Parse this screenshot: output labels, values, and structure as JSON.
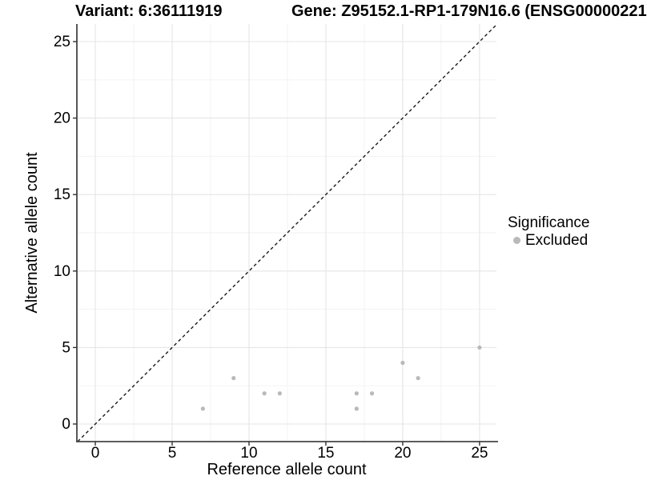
{
  "figure": {
    "variant_title": "Variant: 6:36111919",
    "gene_title": "Gene: Z95152.1-RP1-179N16.6 (ENSG00000221"
  },
  "chart_data": {
    "type": "scatter",
    "xlabel": "Reference allele count",
    "ylabel": "Alternative allele count",
    "xlim": [
      -1.2,
      26.1
    ],
    "ylim": [
      -1.15,
      26.15
    ],
    "xticks": [
      0,
      5,
      10,
      15,
      20,
      25
    ],
    "yticks": [
      0,
      5,
      10,
      15,
      20,
      25
    ],
    "xticks_minor": [
      2.5,
      7.5,
      12.5,
      17.5,
      22.5
    ],
    "yticks_minor": [
      2.5,
      7.5,
      12.5,
      17.5,
      22.5
    ],
    "grid": true,
    "identity_line": {
      "show": true,
      "style": "dashed",
      "meaning": "y = x"
    },
    "series": [
      {
        "name": "Excluded",
        "color": "#b9b9b9",
        "points": [
          {
            "x": 7,
            "y": 1
          },
          {
            "x": 9,
            "y": 3
          },
          {
            "x": 11,
            "y": 2
          },
          {
            "x": 12,
            "y": 2
          },
          {
            "x": 17,
            "y": 1
          },
          {
            "x": 17,
            "y": 2
          },
          {
            "x": 18,
            "y": 2
          },
          {
            "x": 20,
            "y": 4
          },
          {
            "x": 21,
            "y": 3
          },
          {
            "x": 25,
            "y": 5
          }
        ]
      }
    ],
    "legend": {
      "title": "Significance",
      "position": "right",
      "entries": [
        {
          "label": "Excluded",
          "color": "#b9b9b9"
        }
      ]
    }
  },
  "colors": {
    "background": "#ffffff",
    "grid_major": "#e5e5e5",
    "grid_minor": "#f2f2f2",
    "axis": "#454545",
    "tick": "#333333",
    "text": "#000000",
    "identity_line": "#1a1a1a"
  }
}
